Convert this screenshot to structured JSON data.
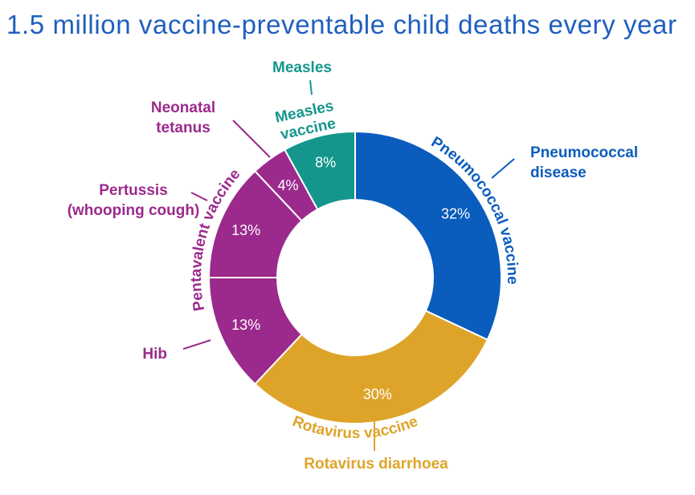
{
  "title": "1.5 million vaccine-preventable child deaths every year",
  "colors": {
    "pneumococcal": "#0a5cbd",
    "rotavirus": "#dea42a",
    "pentavalent": "#9b2a8c",
    "measles": "#14968c",
    "title": "#1f5fbf"
  },
  "chart_data": {
    "type": "pie",
    "donut": true,
    "title": "1.5 million vaccine-preventable child deaths every year",
    "slices": [
      {
        "label": "Pneumococcal disease",
        "value": 32,
        "display": "32%",
        "vaccine": "Pneumococcal vaccine",
        "color": "#0a5cbd"
      },
      {
        "label": "Rotavirus diarrhoea",
        "value": 30,
        "display": "30%",
        "vaccine": "Rotavirus vaccine",
        "color": "#dea42a"
      },
      {
        "label": "Hib",
        "value": 13,
        "display": "13%",
        "vaccine": "Pentavalent vaccine",
        "color": "#9b2a8c"
      },
      {
        "label": "Pertussis (whooping cough)",
        "value": 13,
        "display": "13%",
        "vaccine": "Pentavalent vaccine",
        "color": "#9b2a8c"
      },
      {
        "label": "Neonatal tetanus",
        "value": 4,
        "display": "4%",
        "vaccine": "Pentavalent vaccine",
        "color": "#9b2a8c"
      },
      {
        "label": "Measles",
        "value": 8,
        "display": "8%",
        "vaccine": "Measles vaccine",
        "color": "#14968c"
      }
    ],
    "vaccine_groups": [
      {
        "name": "Pneumococcal vaccine",
        "color": "#0a5cbd"
      },
      {
        "name": "Rotavirus vaccine",
        "color": "#dea42a"
      },
      {
        "name": "Pentavalent vaccine",
        "color": "#9b2a8c"
      },
      {
        "name": "Measles vaccine",
        "color": "#14968c"
      }
    ],
    "outer_labels": {
      "pneumococcal": [
        "Pneumococcal",
        "disease"
      ],
      "rotavirus": [
        "Rotavirus diarrhoea"
      ],
      "hib": [
        "Hib"
      ],
      "pertussis": [
        "Pertussis",
        "(whooping cough)"
      ],
      "tetanus": [
        "Neonatal",
        "tetanus"
      ],
      "measles": [
        "Measles"
      ]
    },
    "measles_vaccine_lines": [
      "Measles",
      "vaccine"
    ]
  }
}
